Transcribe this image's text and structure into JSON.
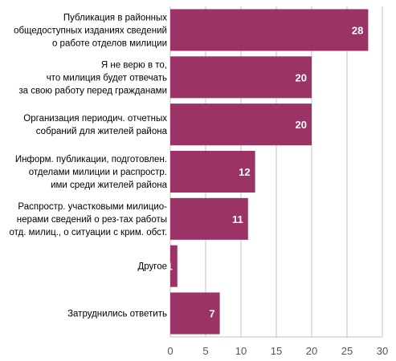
{
  "chart_data": {
    "type": "bar",
    "orientation": "horizontal",
    "categories": [
      [
        "Публикация в районных",
        "общедоступных изданиях сведений",
        "о работе отделов милиции"
      ],
      [
        "Я не верю в то,",
        "что милиция будет отвечать",
        "за свою работу перед гражданами"
      ],
      [
        "Организация периодич. отчетных",
        "собраний для жителей района"
      ],
      [
        "Информ. публикации, подготовлен.",
        "отделами милиции  и распростр.",
        "ими среди жителей района"
      ],
      [
        "Распростр. участковыми милицио-",
        "нерами сведений о рез-тах работы",
        "отд. милиц., о ситуации с крим. обст."
      ],
      [
        "Другое"
      ],
      [
        "Затруднились ответить"
      ]
    ],
    "values": [
      28,
      20,
      20,
      12,
      11,
      1,
      7
    ],
    "value_labels": [
      "28",
      "20",
      "20",
      "12",
      "11",
      "1",
      "7"
    ],
    "xlim": [
      0,
      30
    ],
    "xticks": [
      0,
      5,
      10,
      15,
      20,
      25,
      30
    ],
    "xtick_labels": [
      "0",
      "5",
      "10",
      "15",
      "20",
      "25",
      "30"
    ],
    "grid": true,
    "bar_color": "#9B3366",
    "grid_color": "#C0C0C0"
  }
}
